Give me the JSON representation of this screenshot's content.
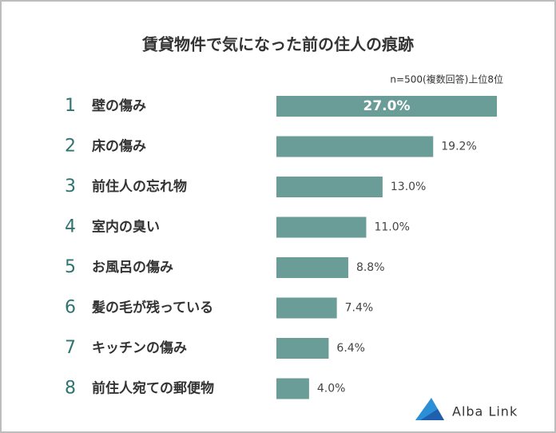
{
  "chart_data": {
    "type": "bar",
    "orientation": "horizontal",
    "title": "賃貸物件で気になった前の住人の痕跡",
    "subtitle": "n=500(複数回答)上位8位",
    "ranks": [
      1,
      2,
      3,
      4,
      5,
      6,
      7,
      8
    ],
    "categories": [
      "壁の傷み",
      "床の傷み",
      "前住人の忘れ物",
      "室内の臭い",
      "お風呂の傷み",
      "髪の毛が残っている",
      "キッチンの傷み",
      "前住人宛ての郵便物"
    ],
    "values": [
      27.0,
      19.2,
      13.0,
      11.0,
      8.8,
      7.4,
      6.4,
      4.0
    ],
    "value_labels": [
      "27.0%",
      "19.2%",
      "13.0%",
      "11.0%",
      "8.8%",
      "7.4%",
      "6.4%",
      "4.0%"
    ],
    "color": "#6a9d98"
  },
  "logo": "Alba Link"
}
